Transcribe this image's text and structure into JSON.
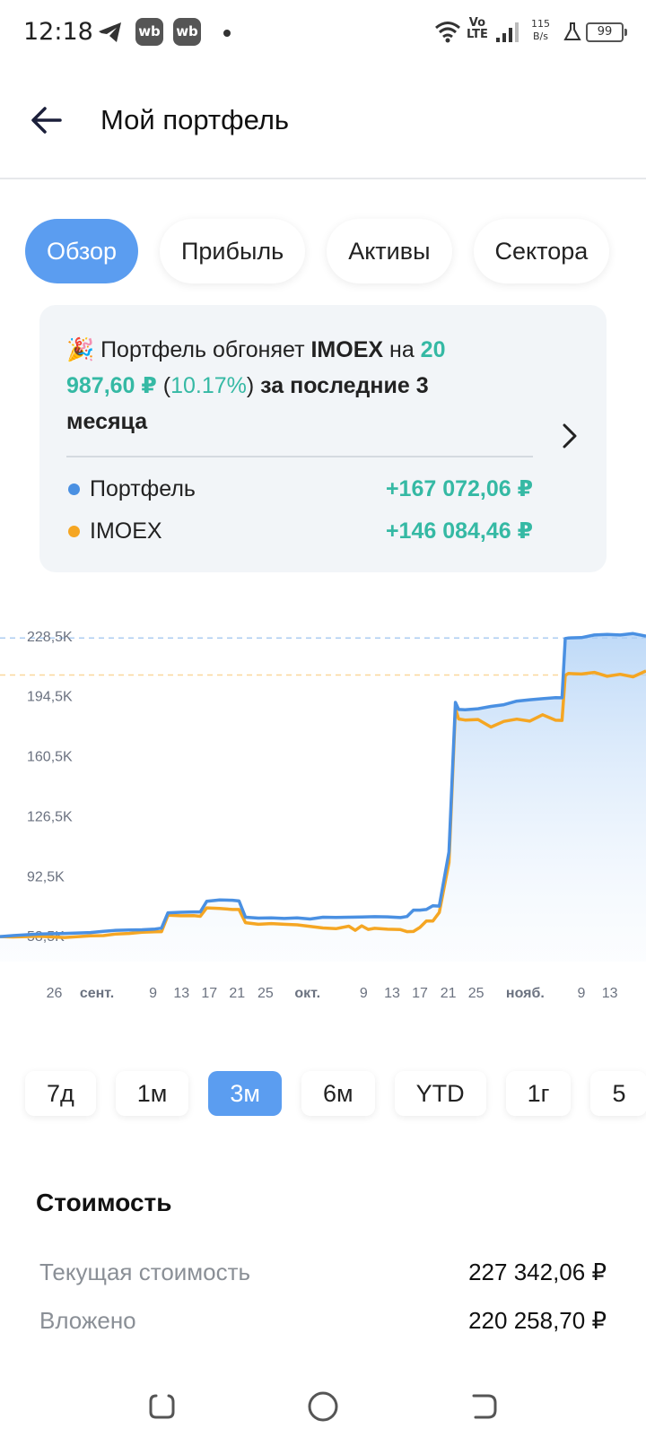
{
  "status_bar": {
    "time": "12:18",
    "badge1": "wb",
    "badge2": "wb",
    "volte_line1": "Vo",
    "volte_line2": "LTE",
    "speed_value": "115",
    "speed_unit": "B/s",
    "battery": "99",
    "icons": [
      "telegram-icon",
      "wifi-icon",
      "signal-icon",
      "flask-icon"
    ]
  },
  "header": {
    "title": "Мой портфель",
    "back_icon": "arrow-left-icon"
  },
  "tabs": [
    {
      "label": "Обзор",
      "active": true
    },
    {
      "label": "Прибыль",
      "active": false
    },
    {
      "label": "Активы",
      "active": false
    },
    {
      "label": "Сектора",
      "active": false
    }
  ],
  "summary": {
    "emoji": "🎉",
    "text_1": " Портфель обгоняет ",
    "index_name": "IMOEX",
    "text_2": " на ",
    "diff_amount": "20 987,60 ₽",
    "paren_open": " (",
    "diff_percent": "10.17%",
    "paren_close": ") ",
    "period_text": "за последние 3 месяца",
    "legend": [
      {
        "name": "Портфель",
        "value": "+167 072,06 ₽",
        "color": "#4a90e2"
      },
      {
        "name": "IMOEX",
        "value": "+146 084,46 ₽",
        "color": "#f5a623"
      }
    ]
  },
  "chart_data": {
    "type": "line",
    "y_ticks": [
      "228,5K",
      "194,5K",
      "160,5K",
      "126,5K",
      "92,5K",
      "58,5K"
    ],
    "y_tick_values": [
      228.5,
      194.5,
      160.5,
      126.5,
      92.5,
      58.5
    ],
    "ylim": [
      54,
      232
    ],
    "x_range": [
      0,
      100
    ],
    "x_ticks": [
      {
        "label": "26",
        "pos": 8.4,
        "month": false
      },
      {
        "label": "сент.",
        "pos": 15.0,
        "month": true
      },
      {
        "label": "9",
        "pos": 23.7,
        "month": false
      },
      {
        "label": "13",
        "pos": 28.1,
        "month": false
      },
      {
        "label": "17",
        "pos": 32.4,
        "month": false
      },
      {
        "label": "21",
        "pos": 36.7,
        "month": false
      },
      {
        "label": "25",
        "pos": 41.1,
        "month": false
      },
      {
        "label": "окт.",
        "pos": 47.6,
        "month": true
      },
      {
        "label": "9",
        "pos": 56.3,
        "month": false
      },
      {
        "label": "13",
        "pos": 60.7,
        "month": false
      },
      {
        "label": "17",
        "pos": 65.0,
        "month": false
      },
      {
        "label": "21",
        "pos": 69.4,
        "month": false
      },
      {
        "label": "25",
        "pos": 73.7,
        "month": false
      },
      {
        "label": "нояб.",
        "pos": 81.3,
        "month": true
      },
      {
        "label": "9",
        "pos": 90.0,
        "month": false
      },
      {
        "label": "13",
        "pos": 94.4,
        "month": false
      }
    ],
    "reference_lines": [
      {
        "series": "Портфель",
        "value": 227.3,
        "color": "#4a90e2"
      },
      {
        "series": "IMOEX",
        "value": 206.3,
        "color": "#f5a623"
      }
    ],
    "series": [
      {
        "name": "Портфель",
        "color": "#4a90e2",
        "fill": true,
        "x": [
          0,
          2,
          6,
          10,
          14,
          16,
          18,
          20,
          22,
          24,
          25,
          26,
          28,
          30,
          31,
          32,
          34,
          36,
          37,
          38,
          40,
          42,
          44,
          46,
          48,
          50,
          52,
          54,
          56,
          58,
          60,
          62,
          63,
          64,
          65,
          66,
          67,
          68,
          69.5,
          70.5,
          71,
          72,
          74,
          76,
          78,
          80,
          82,
          84,
          86,
          87,
          87.5,
          88,
          90,
          92,
          94,
          96,
          98,
          100
        ],
        "values": [
          58.0,
          58.6,
          59.5,
          59.8,
          60.3,
          61.0,
          61.6,
          61.8,
          61.9,
          62.3,
          62.8,
          71.5,
          71.8,
          72.0,
          72.0,
          78.0,
          78.8,
          78.6,
          78.2,
          69.0,
          68.5,
          68.6,
          68.3,
          68.6,
          68.0,
          69.0,
          68.9,
          69.0,
          69.1,
          69.3,
          69.2,
          68.8,
          69.4,
          73.0,
          73.0,
          73.4,
          75.5,
          75.3,
          106.0,
          190.8,
          186.8,
          186.6,
          187.2,
          188.5,
          189.5,
          191.5,
          192.3,
          192.9,
          193.5,
          193.4,
          227.0,
          227.3,
          227.5,
          229.0,
          229.3,
          229.0,
          229.8,
          228.4
        ]
      },
      {
        "name": "IMOEX",
        "color": "#f5a623",
        "fill": false,
        "x": [
          0,
          2,
          6,
          10,
          14,
          16,
          18,
          20,
          22,
          24,
          25,
          26,
          28,
          30,
          31,
          32,
          34,
          36,
          37,
          38,
          40,
          42,
          44,
          46,
          48,
          50,
          52,
          54,
          55,
          56,
          57,
          58,
          60,
          62,
          63,
          64,
          65,
          66,
          67,
          68,
          69.5,
          70.5,
          71,
          72,
          74,
          76,
          78,
          80,
          82,
          84,
          86,
          87,
          87.5,
          88,
          90,
          92,
          94,
          96,
          98,
          100
        ],
        "values": [
          58.0,
          57.8,
          58.2,
          57.5,
          58.5,
          58.6,
          59.5,
          59.8,
          60.5,
          60.7,
          60.8,
          70.1,
          69.8,
          69.9,
          69.5,
          74.3,
          74.0,
          73.4,
          73.4,
          65.9,
          65.0,
          65.4,
          65.0,
          64.7,
          63.8,
          62.9,
          62.5,
          63.9,
          61.6,
          64.1,
          62.1,
          62.7,
          62.2,
          62.0,
          60.8,
          60.9,
          63.2,
          66.8,
          66.8,
          71.7,
          100.0,
          187.2,
          181.4,
          180.8,
          181.1,
          176.8,
          180.0,
          181.3,
          180.2,
          183.8,
          180.7,
          180.6,
          206.1,
          207.2,
          206.9,
          207.8,
          205.6,
          206.7,
          205.3,
          208.6
        ]
      }
    ]
  },
  "periods": [
    {
      "label": "7д",
      "active": false
    },
    {
      "label": "1м",
      "active": false
    },
    {
      "label": "3м",
      "active": true
    },
    {
      "label": "6м",
      "active": false
    },
    {
      "label": "YTD",
      "active": false
    },
    {
      "label": "1г",
      "active": false
    },
    {
      "label": "5",
      "active": false
    }
  ],
  "value_section": {
    "title": "Стоимость",
    "rows": [
      {
        "label": "Текущая стоимость",
        "value": "227 342,06 ₽"
      },
      {
        "label": "Вложено",
        "value": "220 258,70 ₽"
      }
    ]
  },
  "navbar": {
    "icons": [
      "recent-apps-icon",
      "home-icon",
      "back-nav-icon"
    ]
  }
}
